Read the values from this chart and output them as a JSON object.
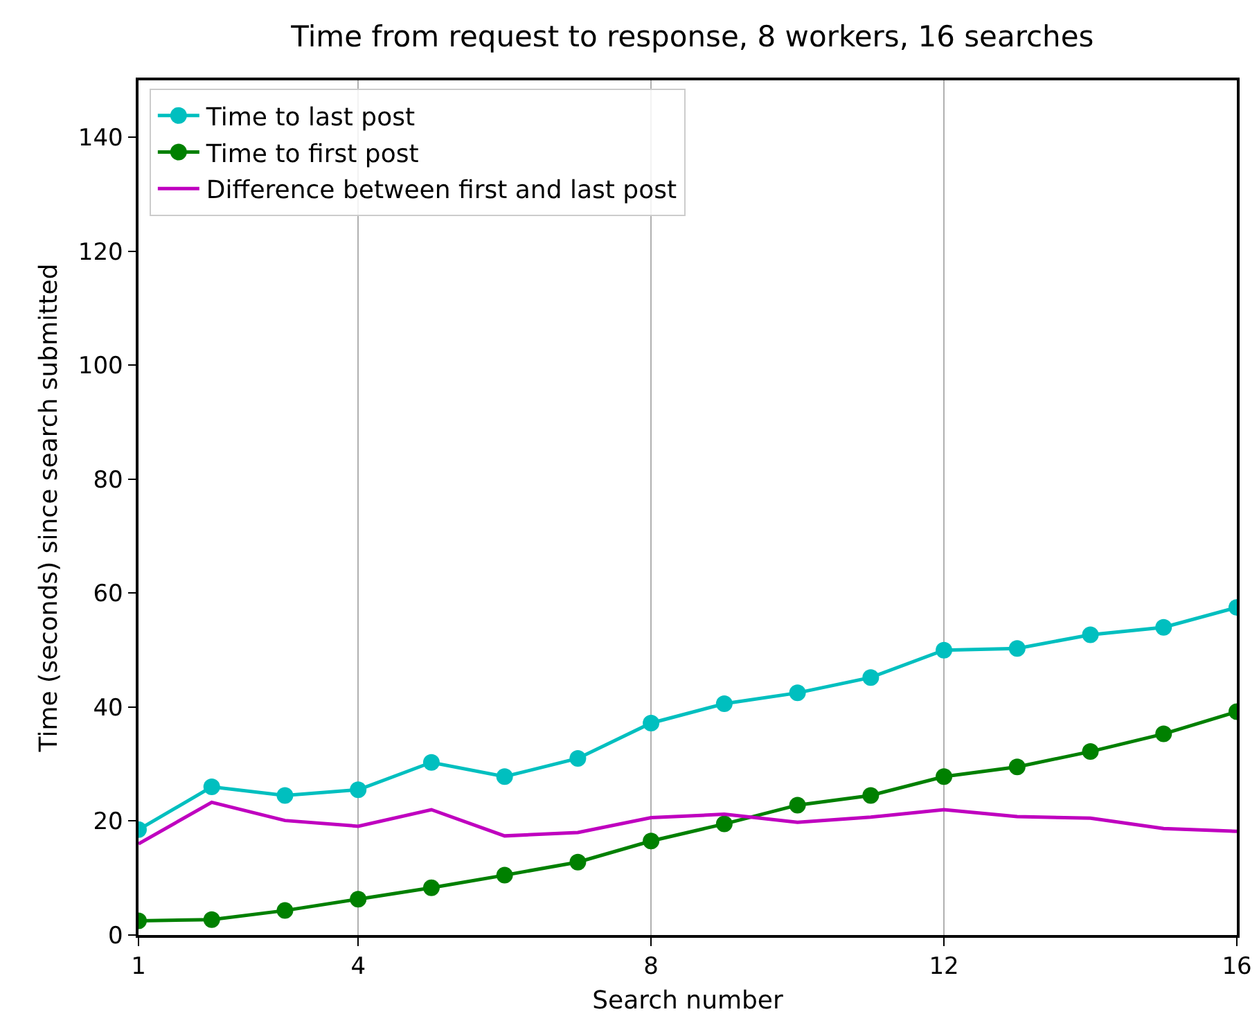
{
  "chart_data": {
    "type": "line",
    "title": "Time from request to response, 8 workers, 16 searches",
    "xlabel": "Search number",
    "ylabel": "Time (seconds) since search submitted",
    "x": [
      1,
      2,
      3,
      4,
      5,
      6,
      7,
      8,
      9,
      10,
      11,
      12,
      13,
      14,
      15,
      16
    ],
    "series": [
      {
        "name": "Time to last post",
        "color": "#00bfbf",
        "marker": "circle",
        "values": [
          18.5,
          26,
          24.5,
          25.5,
          30.3,
          27.8,
          31,
          37.2,
          40.6,
          42.5,
          45.2,
          50,
          50.3,
          52.7,
          54,
          57.5
        ]
      },
      {
        "name": "Time to first post",
        "color": "#008000",
        "marker": "circle",
        "values": [
          2.5,
          2.7,
          4.3,
          6.3,
          8.3,
          10.5,
          12.8,
          16.5,
          19.5,
          22.8,
          24.5,
          27.8,
          29.5,
          32.2,
          35.3,
          39.2
        ]
      },
      {
        "name": "Difference between first and last post",
        "color": "#bf00bf",
        "marker": "none",
        "values": [
          16,
          23.3,
          20.1,
          19.1,
          22,
          17.4,
          18,
          20.6,
          21.2,
          19.8,
          20.7,
          22,
          20.8,
          20.5,
          18.7,
          18.2
        ]
      }
    ],
    "xlim": [
      1,
      16
    ],
    "xticks": [
      1,
      4,
      8,
      12,
      16
    ],
    "ylim": [
      0,
      150
    ],
    "yticks": [
      0,
      20,
      40,
      60,
      80,
      100,
      120,
      140
    ],
    "grid": "x",
    "legend": "top left",
    "line_style": "solid"
  }
}
